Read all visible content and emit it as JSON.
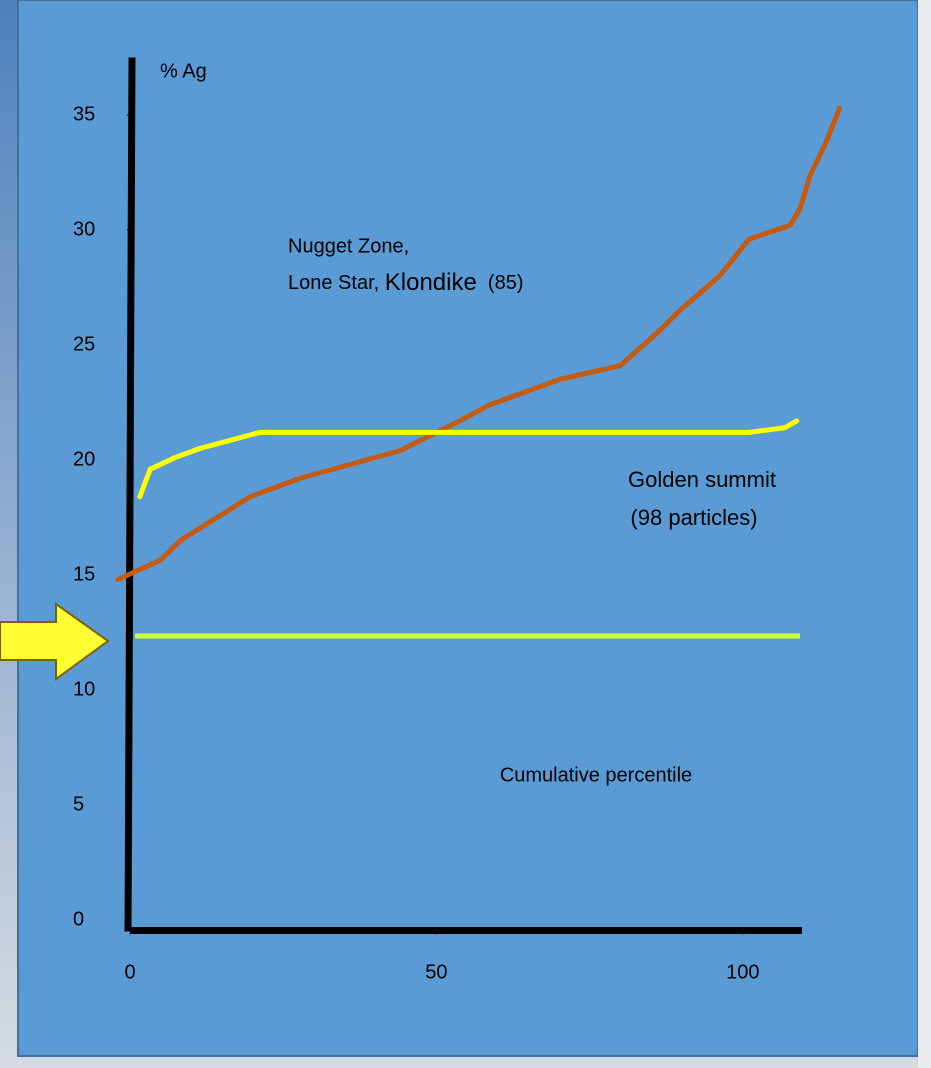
{
  "chart_data": {
    "type": "line",
    "ylabel": "% Ag",
    "xlabel": "Cumulative percentile",
    "xlim": [
      0,
      109
    ],
    "ylim": [
      -0.5,
      37.5
    ],
    "xticks": [
      0,
      50,
      100
    ],
    "yticks": [
      0,
      5,
      10,
      15,
      20,
      25,
      30,
      35
    ],
    "series": [
      {
        "color": "#c55a11",
        "x": [
          -2,
          5,
          8.2,
          19.6,
          27.7,
          44,
          53.8,
          58.7,
          70.1,
          80,
          86.5,
          89.7,
          96.2,
          101,
          107.7,
          109.3,
          111,
          113.4,
          115.8
        ],
        "values": [
          14.8,
          15.65,
          16.5,
          18.4,
          19.2,
          20.4,
          21.7,
          22.4,
          23.5,
          24.1,
          25.65,
          26.5,
          28,
          29.6,
          30.2,
          30.9,
          32.4,
          33.7,
          35.3
        ]
      },
      {
        "color": "#ffff00",
        "x": [
          1.6,
          3.3,
          7.3,
          11.4,
          21.2,
          60.3,
          101,
          106.8,
          108.8
        ],
        "values": [
          18.4,
          19.6,
          20.1,
          20.5,
          21.2,
          21.2,
          21.2,
          21.4,
          21.7
        ]
      }
    ],
    "reference_line": {
      "value": 12.35,
      "color": "#ccff33"
    },
    "annotations": {
      "nugget_line1": "Nugget Zone,",
      "nugget_line2a": "Lone Star, ",
      "nugget_line2b": "Klondike",
      "nugget_line2c": "  (85)",
      "golden_line1": "Golden summit",
      "golden_line2": "(98 particles)"
    }
  }
}
